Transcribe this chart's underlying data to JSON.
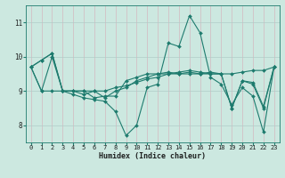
{
  "xlabel": "Humidex (Indice chaleur)",
  "xlim": [
    -0.5,
    23.5
  ],
  "ylim": [
    7.5,
    11.5
  ],
  "yticks": [
    8,
    9,
    10,
    11
  ],
  "xticks": [
    0,
    1,
    2,
    3,
    4,
    5,
    6,
    7,
    8,
    9,
    10,
    11,
    12,
    13,
    14,
    15,
    16,
    17,
    18,
    19,
    20,
    21,
    22,
    23
  ],
  "background_color": "#cce8e0",
  "grid_color": "#b8d8d0",
  "line_color": "#1e7b6e",
  "series": [
    [
      9.7,
      9.9,
      10.1,
      9.0,
      8.9,
      8.8,
      8.75,
      8.7,
      8.4,
      7.7,
      8.0,
      9.1,
      9.2,
      10.4,
      10.3,
      11.2,
      10.7,
      9.4,
      9.2,
      8.6,
      9.1,
      8.85,
      7.8,
      9.7
    ],
    [
      9.7,
      9.0,
      10.0,
      9.0,
      9.0,
      9.0,
      9.0,
      9.0,
      9.1,
      9.15,
      9.25,
      9.35,
      9.4,
      9.5,
      9.55,
      9.6,
      9.55,
      9.5,
      9.5,
      9.5,
      9.55,
      9.6,
      9.6,
      9.7
    ],
    [
      9.7,
      9.9,
      10.1,
      9.0,
      9.0,
      8.9,
      9.0,
      8.8,
      9.0,
      9.1,
      9.3,
      9.4,
      9.5,
      9.55,
      9.5,
      9.55,
      9.5,
      9.55,
      9.5,
      8.5,
      9.3,
      9.25,
      8.55,
      9.7
    ],
    [
      9.7,
      9.0,
      9.0,
      9.0,
      9.0,
      9.0,
      8.8,
      8.85,
      8.85,
      9.3,
      9.4,
      9.5,
      9.5,
      9.5,
      9.5,
      9.5,
      9.5,
      9.5,
      9.5,
      8.5,
      9.3,
      9.2,
      8.5,
      9.7
    ]
  ]
}
